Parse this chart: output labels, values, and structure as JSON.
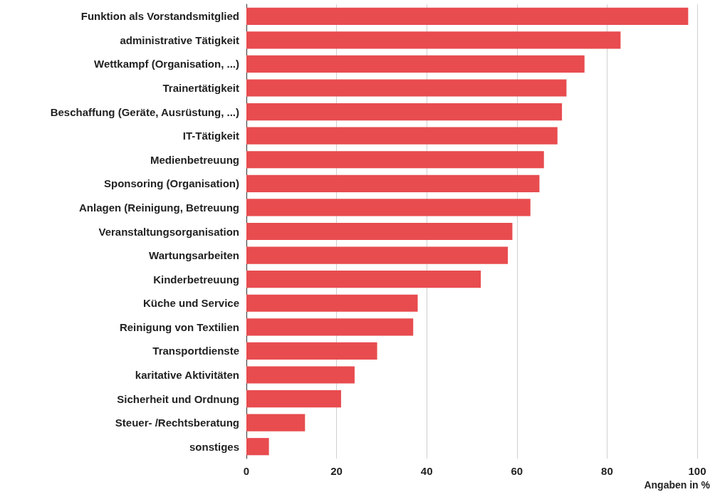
{
  "chart_data": {
    "type": "bar",
    "orientation": "horizontal",
    "xlabel": "Angaben in %",
    "categories": [
      "Funktion als Vorstandsmitglied",
      "administrative Tätigkeit",
      "Wettkampf (Organisation, ...)",
      "Trainertätigkeit",
      "Beschaffung (Geräte, Ausrüstung, ...)",
      "IT-Tätigkeit",
      "Medienbetreuung",
      "Sponsoring (Organisation)",
      "Anlagen (Reinigung, Betreuung",
      "Veranstaltungsorganisation",
      "Wartungsarbeiten",
      "Kinderbetreuung",
      "Küche und Service",
      "Reinigung von Textilien",
      "Transportdienste",
      "karitative Aktivitäten",
      "Sicherheit und Ordnung",
      "Steuer- /Rechtsberatung",
      "sonstiges"
    ],
    "values": [
      98,
      83,
      75,
      71,
      70,
      69,
      66,
      65,
      63,
      59,
      58,
      52,
      38,
      37,
      29,
      24,
      21,
      13,
      5
    ],
    "color": "#e84c4f",
    "xlim": [
      0,
      100
    ],
    "xticks": [
      0,
      20,
      40,
      60,
      80,
      100
    ],
    "grid": "x"
  }
}
